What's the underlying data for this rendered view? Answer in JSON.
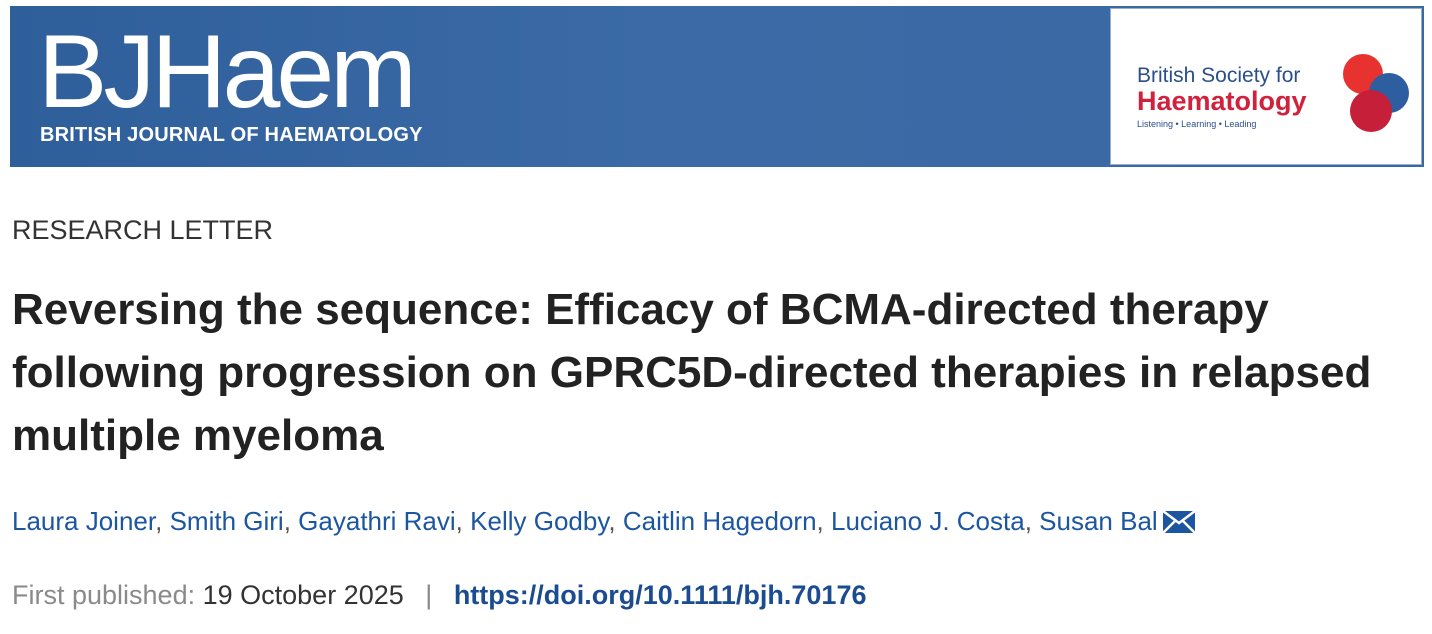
{
  "banner": {
    "logo": "BJHaem",
    "subtitle": "BRITISH JOURNAL OF HAEMATOLOGY",
    "society": {
      "line1": "British Society for",
      "line2": "Haematology",
      "tagline": "Listening • Learning • Leading"
    }
  },
  "article_type": "RESEARCH LETTER",
  "title": "Reversing the sequence: Efficacy of BCMA-directed therapy following progression on GPRC5D-directed therapies in relapsed multiple myeloma",
  "authors": [
    "Laura Joiner",
    "Smith Giri",
    "Gayathri Ravi",
    "Kelly Godby",
    "Caitlin Hagedorn",
    "Luciano J. Costa",
    "Susan Bal"
  ],
  "author_separator": ",",
  "published": {
    "label": "First published:",
    "date": "19 October 2025",
    "separator": "|",
    "doi": "https://doi.org/10.1111/bjh.70176"
  }
}
